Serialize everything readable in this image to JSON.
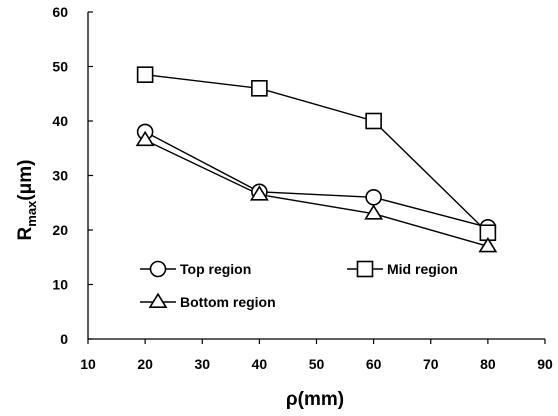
{
  "chart_data": {
    "type": "line",
    "xlabel": "ρ(mm)",
    "ylabel_main": "R",
    "ylabel_sub": "max",
    "ylabel_unit": "(μm)",
    "xlim": [
      10,
      90
    ],
    "ylim": [
      0,
      60
    ],
    "xticks": [
      10,
      20,
      30,
      40,
      50,
      60,
      70,
      80,
      90
    ],
    "yticks": [
      0,
      10,
      20,
      30,
      40,
      50,
      60
    ],
    "grid": false,
    "legend_placement": "lower-left",
    "x": [
      20,
      40,
      60,
      80
    ],
    "series": [
      {
        "name": "Top region",
        "marker": "circle",
        "values": [
          38,
          27,
          26,
          20.5
        ]
      },
      {
        "name": "Mid region",
        "marker": "square",
        "values": [
          48.5,
          46,
          40,
          19.5
        ]
      },
      {
        "name": "Bottom region",
        "marker": "triangle",
        "values": [
          36.5,
          26.5,
          23,
          17
        ]
      }
    ],
    "line_color": "#000000"
  }
}
